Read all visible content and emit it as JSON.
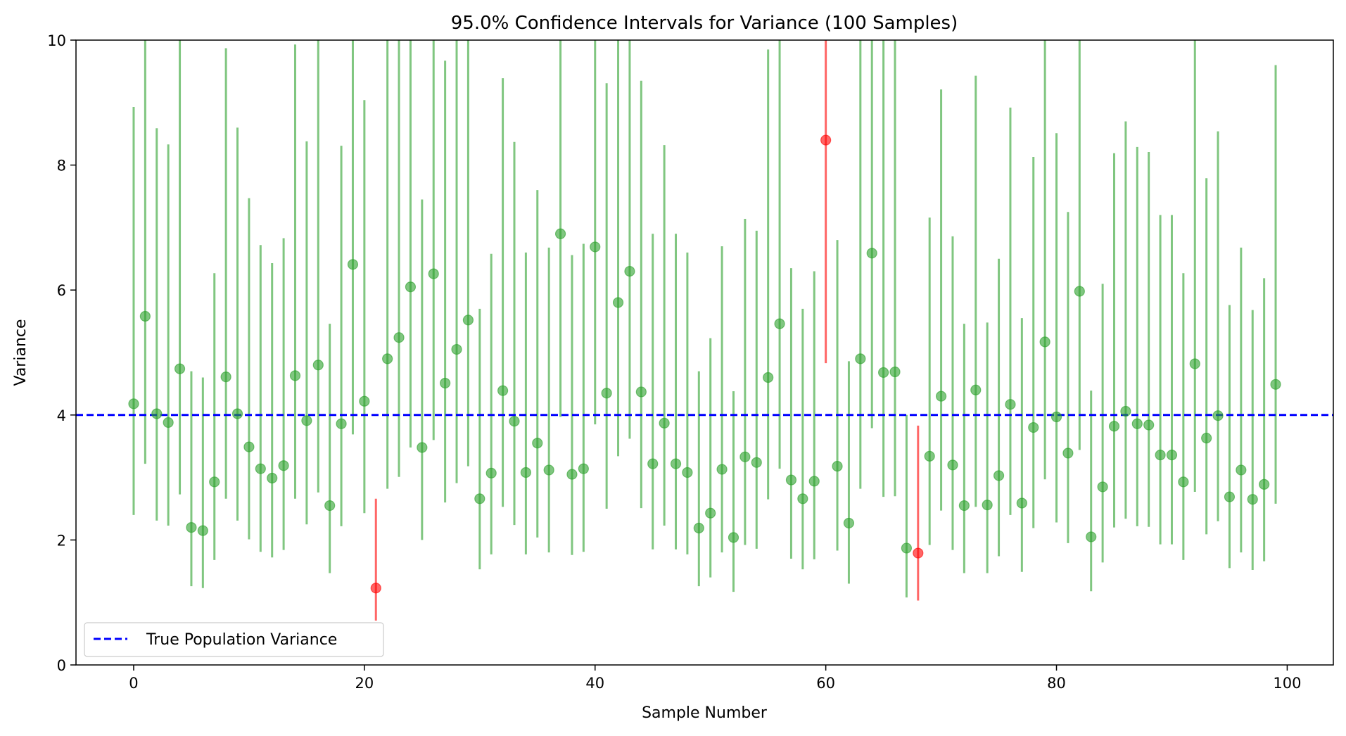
{
  "chart_data": {
    "type": "scatter",
    "title": "95.0% Confidence Intervals for Variance (100 Samples)",
    "xlabel": "Sample Number",
    "ylabel": "Variance",
    "xlim": [
      -5,
      104
    ],
    "ylim": [
      0,
      10
    ],
    "xticks": [
      0,
      20,
      40,
      60,
      80,
      100
    ],
    "yticks": [
      0,
      2,
      4,
      6,
      8,
      10
    ],
    "grid": false,
    "legend_position": "lower-left",
    "true_variance": 4,
    "reference_line": {
      "name": "True Population Variance",
      "value": 4,
      "color": "#0000ff",
      "style": "dashed"
    },
    "colors": {
      "contains": "#2ca02c",
      "misses": "#ff0000"
    },
    "series": [
      {
        "x": [
          0,
          1,
          2,
          3,
          4,
          5,
          6,
          7,
          8,
          9,
          10,
          11,
          12,
          13,
          14,
          15,
          16,
          17,
          18,
          19,
          20,
          21,
          22,
          23,
          24,
          25,
          26,
          27,
          28,
          29,
          30,
          31,
          32,
          33,
          34,
          35,
          36,
          37,
          38,
          39,
          40,
          41,
          42,
          43,
          44,
          45,
          46,
          47,
          48,
          49,
          50,
          51,
          52,
          53,
          54,
          55,
          56,
          57,
          58,
          59,
          60,
          61,
          62,
          63,
          64,
          65,
          66,
          67,
          68,
          69,
          70,
          71,
          72,
          73,
          74,
          75,
          76,
          77,
          78,
          79,
          80,
          81,
          82,
          83,
          84,
          85,
          86,
          87,
          88,
          89,
          90,
          91,
          92,
          93,
          94,
          95,
          96,
          97,
          98,
          99
        ],
        "variance": [
          4.18,
          5.58,
          4.02,
          3.88,
          4.74,
          2.2,
          2.15,
          2.93,
          4.61,
          4.02,
          3.49,
          3.14,
          2.99,
          3.19,
          4.63,
          3.91,
          4.8,
          2.55,
          3.86,
          6.41,
          4.22,
          1.23,
          4.9,
          5.24,
          6.05,
          3.48,
          6.26,
          4.51,
          5.05,
          5.52,
          2.66,
          3.07,
          4.39,
          3.9,
          3.08,
          3.55,
          3.12,
          6.9,
          3.05,
          3.14,
          6.69,
          4.35,
          5.8,
          6.3,
          4.37,
          3.22,
          3.87,
          3.22,
          3.08,
          2.19,
          2.43,
          3.13,
          2.04,
          3.33,
          3.24,
          4.6,
          5.46,
          2.96,
          2.66,
          2.94,
          8.4,
          3.18,
          2.27,
          4.9,
          6.59,
          4.68,
          4.69,
          1.87,
          1.79,
          3.34,
          4.3,
          3.2,
          2.55,
          4.4,
          2.56,
          3.03,
          4.17,
          2.59,
          3.8,
          5.17,
          3.97,
          3.39,
          5.98,
          2.05,
          2.85,
          3.82,
          4.06,
          3.86,
          3.84,
          3.36,
          3.36,
          2.93,
          4.82,
          3.63,
          3.99,
          2.69,
          3.12,
          2.65,
          2.89,
          4.49
        ],
        "lower": [
          2.4,
          3.22,
          2.31,
          2.23,
          2.73,
          1.26,
          1.23,
          1.68,
          2.66,
          2.31,
          2.01,
          1.81,
          1.72,
          1.84,
          2.66,
          2.25,
          2.76,
          1.47,
          2.22,
          3.69,
          2.43,
          0.71,
          2.82,
          3.01,
          3.48,
          2.0,
          3.6,
          2.6,
          2.91,
          3.18,
          1.53,
          1.77,
          2.53,
          2.24,
          1.77,
          2.04,
          1.8,
          3.97,
          1.76,
          1.81,
          3.85,
          2.5,
          3.34,
          3.62,
          2.51,
          1.85,
          2.23,
          1.85,
          1.77,
          1.26,
          1.4,
          1.8,
          1.17,
          1.92,
          1.86,
          2.65,
          3.14,
          1.7,
          1.53,
          1.69,
          4.83,
          1.83,
          1.3,
          2.82,
          3.79,
          2.69,
          2.7,
          1.08,
          1.03,
          1.92,
          2.47,
          1.84,
          1.47,
          2.53,
          1.47,
          1.74,
          2.4,
          1.49,
          2.19,
          2.97,
          2.28,
          1.95,
          3.44,
          1.18,
          1.64,
          2.2,
          2.34,
          2.22,
          2.21,
          1.93,
          1.93,
          1.68,
          2.77,
          2.09,
          2.3,
          1.55,
          1.8,
          1.52,
          1.66,
          2.58
        ],
        "upper": [
          8.93,
          11.9,
          8.59,
          8.33,
          10.12,
          4.7,
          4.6,
          6.27,
          9.87,
          8.6,
          7.47,
          6.72,
          6.43,
          6.83,
          9.93,
          8.38,
          10.26,
          5.46,
          8.31,
          13.72,
          9.04,
          2.66,
          10.5,
          11.22,
          12.95,
          7.45,
          13.4,
          9.67,
          10.8,
          11.82,
          5.7,
          6.58,
          9.39,
          8.37,
          6.6,
          7.6,
          6.68,
          14.8,
          6.56,
          6.74,
          14.34,
          9.31,
          12.42,
          13.5,
          9.35,
          6.9,
          8.32,
          6.9,
          6.6,
          4.7,
          5.23,
          6.7,
          4.38,
          7.14,
          6.95,
          9.85,
          11.7,
          6.35,
          5.7,
          6.3,
          18.0,
          6.8,
          4.86,
          10.5,
          14.1,
          10.0,
          10.05,
          4.0,
          3.83,
          7.16,
          9.21,
          6.86,
          5.46,
          9.43,
          5.48,
          6.5,
          8.92,
          5.55,
          8.13,
          11.07,
          8.51,
          7.25,
          12.8,
          4.39,
          6.1,
          8.19,
          8.7,
          8.29,
          8.21,
          7.2,
          7.2,
          6.27,
          10.32,
          7.79,
          8.54,
          5.76,
          6.68,
          5.68,
          6.19,
          9.6
        ]
      }
    ]
  }
}
